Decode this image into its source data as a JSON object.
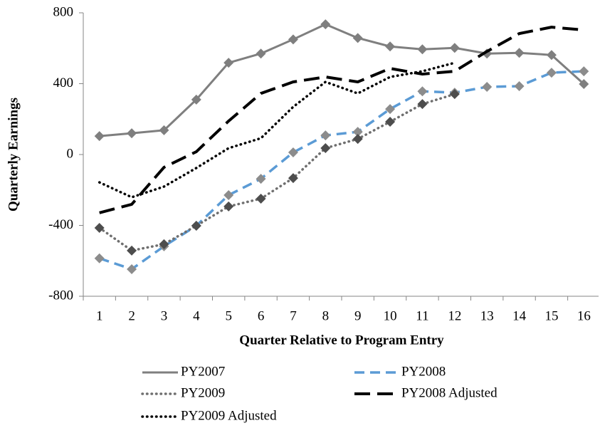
{
  "chart_data": {
    "type": "line",
    "x_label": "Quarter Relative to Program Entry",
    "y_label": "Quarterly Earnings",
    "categories": [
      "1",
      "2",
      "3",
      "4",
      "5",
      "6",
      "7",
      "8",
      "9",
      "10",
      "11",
      "12",
      "13",
      "14",
      "15",
      "16"
    ],
    "ylim": [
      -800,
      800
    ],
    "yticks": [
      -800,
      -400,
      0,
      400,
      800
    ],
    "series": [
      {
        "name": "PY2007",
        "color": "#7f7f7f",
        "linestyle": "solid",
        "marker_color": "#7f7f7f",
        "values": [
          104,
          120,
          137,
          310,
          518,
          570,
          650,
          735,
          658,
          610,
          594,
          602,
          570,
          574,
          562,
          398
        ]
      },
      {
        "name": "PY2008",
        "color": "#5b9bd5",
        "linestyle": "dashed",
        "marker_color": "#8c8c8c",
        "values": [
          -586,
          -647,
          -518,
          -402,
          -229,
          -137,
          12,
          108,
          128,
          257,
          357,
          349,
          382,
          386,
          462,
          470
        ]
      },
      {
        "name": "PY2009",
        "color": "#6f6f6f",
        "linestyle": "dotted",
        "marker_color": "#4d4d4d",
        "values": [
          -414,
          -542,
          -506,
          -402,
          -293,
          -249,
          -133,
          36,
          88,
          185,
          285,
          341,
          null,
          null,
          null,
          null
        ]
      },
      {
        "name": "PY2008 Adjusted",
        "color": "#000000",
        "linestyle": "long-dash",
        "values": [
          -329,
          -281,
          -72,
          16,
          189,
          345,
          410,
          438,
          410,
          486,
          454,
          470,
          582,
          683,
          719,
          703
        ]
      },
      {
        "name": "PY2009 Adjusted",
        "color": "#000000",
        "linestyle": "dotted",
        "values": [
          -157,
          -241,
          -181,
          -76,
          36,
          92,
          269,
          410,
          345,
          438,
          470,
          518,
          null,
          null,
          null,
          null
        ]
      }
    ]
  }
}
